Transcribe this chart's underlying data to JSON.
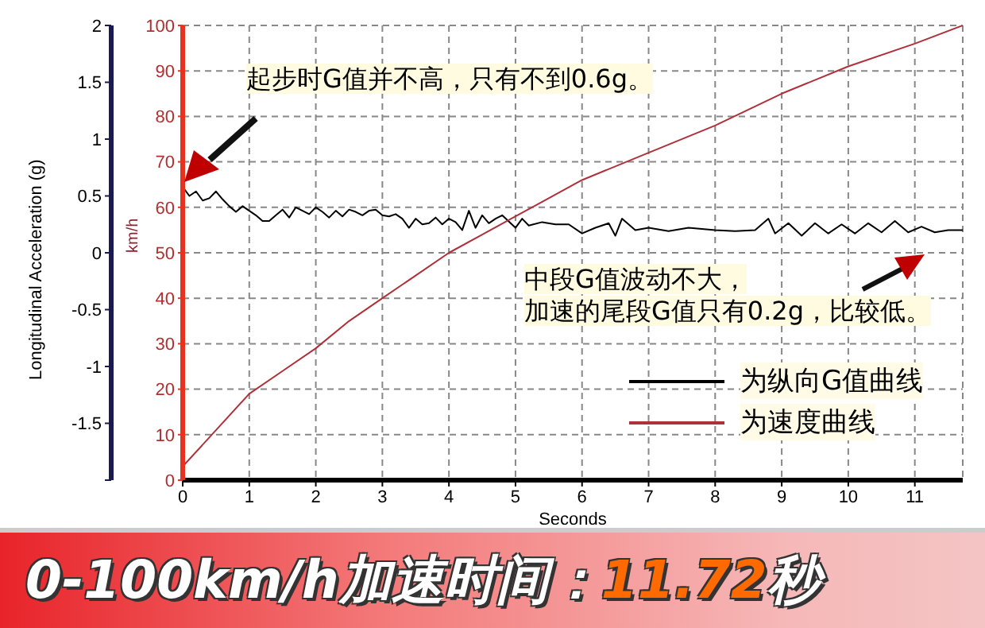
{
  "chart_data": {
    "type": "line",
    "title": "0-100km/h加速时间：11.72秒",
    "xlabel": "Seconds",
    "ylabel": "Longitudinal Acceleration (g)",
    "y2label": "km/h",
    "xlim": [
      0,
      11.72
    ],
    "xticks": [
      0,
      1,
      2,
      3,
      4,
      5,
      6,
      7,
      8,
      9,
      10,
      11
    ],
    "ylim": [
      -2,
      2
    ],
    "yticks": [
      {
        "value": -2,
        "label": null
      },
      -1.5,
      -1,
      -0.5,
      0,
      0.5,
      1,
      1.5,
      2
    ],
    "y2lim": [
      0,
      100
    ],
    "y2ticks": [
      0,
      10,
      20,
      30,
      40,
      50,
      60,
      70,
      80,
      90,
      100
    ],
    "grid": true,
    "legend": "bottom right",
    "line_style": "solid",
    "marker": "none",
    "annotations": [
      "起步时G值并不高，只有不到0.6g。",
      "中段G值波动不大，加速的尾段G值只有0.2g，比较低。"
    ],
    "series": [
      {
        "name": "为纵向G值曲线",
        "color": "#000000",
        "x": [
          0,
          0.1,
          0.2,
          0.3,
          0.4,
          0.5,
          0.6,
          0.7,
          0.8,
          0.9,
          1.0,
          1.1,
          1.2,
          1.3,
          1.4,
          1.5,
          1.6,
          1.7,
          1.8,
          1.9,
          2.0,
          2.1,
          2.2,
          2.3,
          2.4,
          2.5,
          2.6,
          2.7,
          2.8,
          2.9,
          3.0,
          3.1,
          3.2,
          3.3,
          3.4,
          3.5,
          3.6,
          3.7,
          3.8,
          3.9,
          4.0,
          4.1,
          4.2,
          4.3,
          4.4,
          4.5,
          4.6,
          4.7,
          4.8,
          5.0,
          5.1,
          5.2,
          5.4,
          5.6,
          5.8,
          6.0,
          6.2,
          6.4,
          6.5,
          6.6,
          6.8,
          7.0,
          7.3,
          7.6,
          8.0,
          8.3,
          8.6,
          8.8,
          8.9,
          9.1,
          9.3,
          9.5,
          9.7,
          9.9,
          10.1,
          10.3,
          10.5,
          10.7,
          10.9,
          11.1,
          11.3,
          11.5,
          11.72
        ],
        "values": [
          0.58,
          0.5,
          0.54,
          0.46,
          0.48,
          0.54,
          0.47,
          0.41,
          0.36,
          0.41,
          0.37,
          0.33,
          0.28,
          0.28,
          0.33,
          0.38,
          0.31,
          0.4,
          0.37,
          0.34,
          0.4,
          0.36,
          0.31,
          0.37,
          0.32,
          0.38,
          0.36,
          0.33,
          0.37,
          0.38,
          0.33,
          0.32,
          0.34,
          0.3,
          0.22,
          0.3,
          0.25,
          0.26,
          0.31,
          0.25,
          0.3,
          0.27,
          0.2,
          0.37,
          0.22,
          0.33,
          0.26,
          0.3,
          0.33,
          0.22,
          0.3,
          0.24,
          0.27,
          0.25,
          0.25,
          0.17,
          0.22,
          0.26,
          0.15,
          0.3,
          0.2,
          0.22,
          0.19,
          0.22,
          0.2,
          0.19,
          0.2,
          0.3,
          0.17,
          0.26,
          0.15,
          0.26,
          0.17,
          0.25,
          0.17,
          0.26,
          0.18,
          0.28,
          0.18,
          0.23,
          0.18,
          0.2,
          0.2
        ]
      },
      {
        "name": "为速度曲线",
        "color": "#b0303a",
        "axis": "y2",
        "x": [
          0,
          0.5,
          1,
          1.5,
          2,
          2.5,
          3,
          3.5,
          4,
          4.5,
          5,
          6,
          7,
          8,
          9,
          10,
          11,
          11.72
        ],
        "values": [
          3,
          11,
          19,
          24,
          29,
          35,
          40,
          45,
          50,
          54,
          58,
          66,
          72,
          78,
          85,
          91,
          96,
          100
        ]
      }
    ]
  }
}
